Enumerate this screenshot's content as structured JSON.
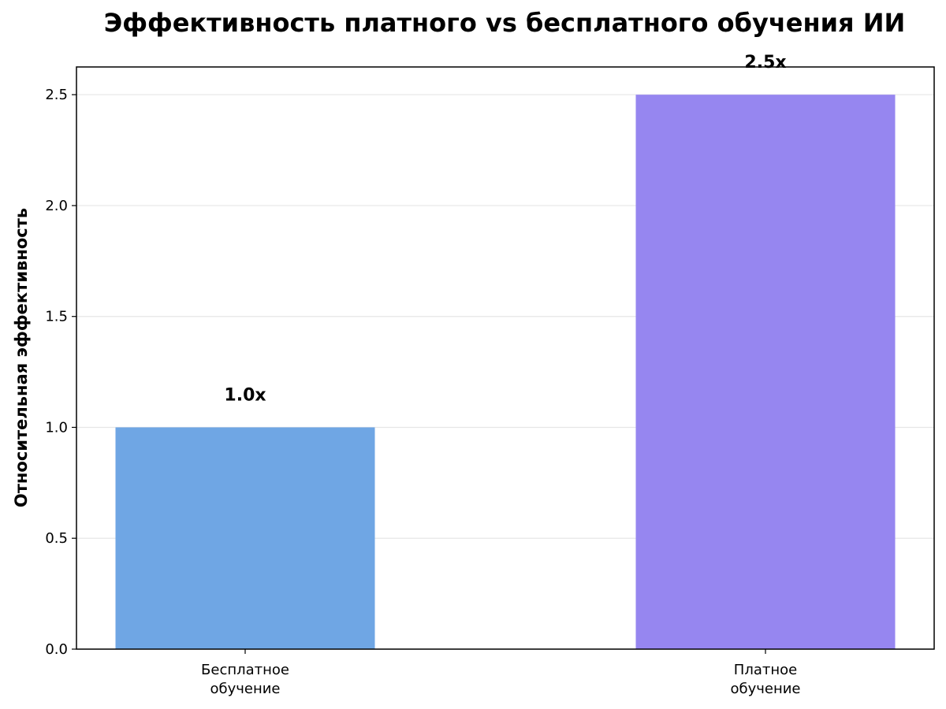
{
  "chart_data": {
    "type": "bar",
    "title": "Эффективность платного vs бесплатного обучения ИИ",
    "ylabel": "Относительная эффективность",
    "xlabel": "",
    "categories": [
      [
        "Бесплатное",
        "обучение"
      ],
      [
        "Платное",
        "обучение"
      ]
    ],
    "values": [
      1.0,
      2.5
    ],
    "data_labels": [
      "1.0x",
      "2.5x"
    ],
    "colors": [
      "#6fa6e4",
      "#9686f0"
    ],
    "ylim": [
      0,
      2.625
    ],
    "yticks": [
      0.0,
      0.5,
      1.0,
      1.5,
      2.0,
      2.5
    ],
    "ytick_labels": [
      "0.0",
      "0.5",
      "1.0",
      "1.5",
      "2.0",
      "2.5"
    ],
    "grid": "y"
  }
}
